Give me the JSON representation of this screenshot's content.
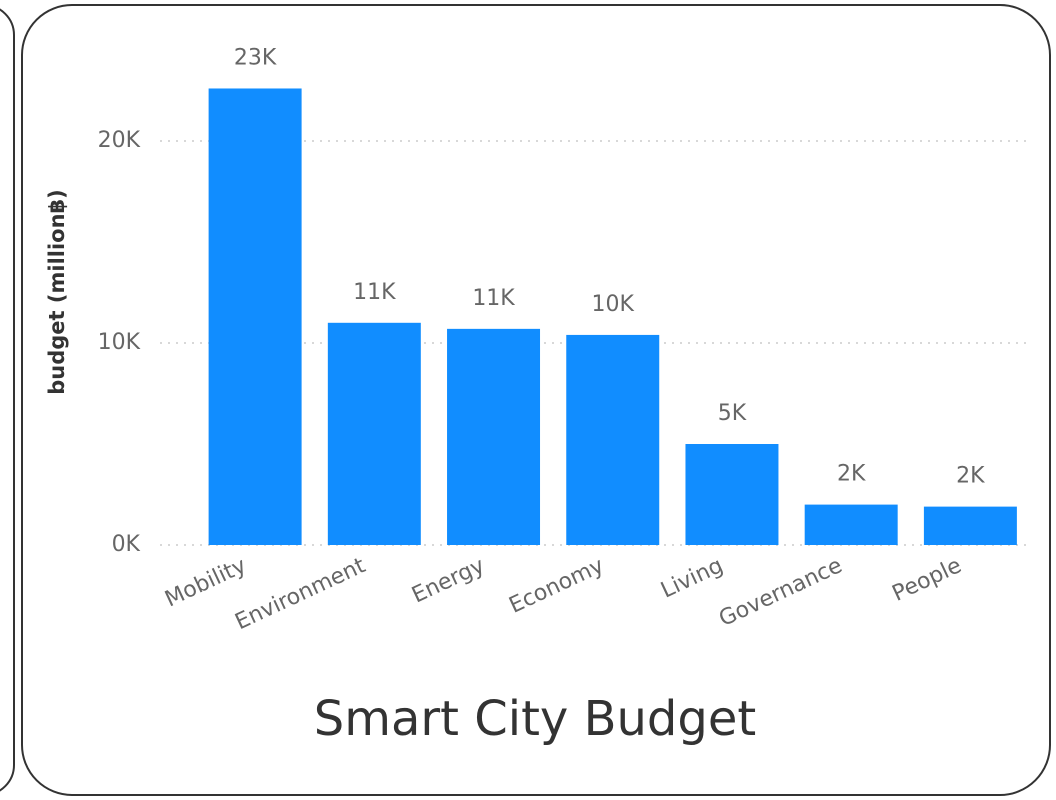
{
  "chart_data": {
    "type": "bar",
    "title": "Smart City Budget",
    "y_label": "budget (million฿)",
    "categories": [
      "Mobility",
      "Environment",
      "Energy",
      "Economy",
      "Living",
      "Governance",
      "People"
    ],
    "values": [
      22600,
      11000,
      10700,
      10400,
      5000,
      2000,
      1900
    ],
    "value_labels": [
      "23K",
      "11K",
      "11K",
      "10K",
      "5K",
      "2K",
      "2K"
    ],
    "color": "#118dff",
    "ylim": [
      0,
      24500
    ],
    "yticks": [
      {
        "value": 0,
        "label": "0K"
      },
      {
        "value": 10000,
        "label": "10K"
      },
      {
        "value": 20000,
        "label": "20K"
      }
    ],
    "grid": true
  }
}
